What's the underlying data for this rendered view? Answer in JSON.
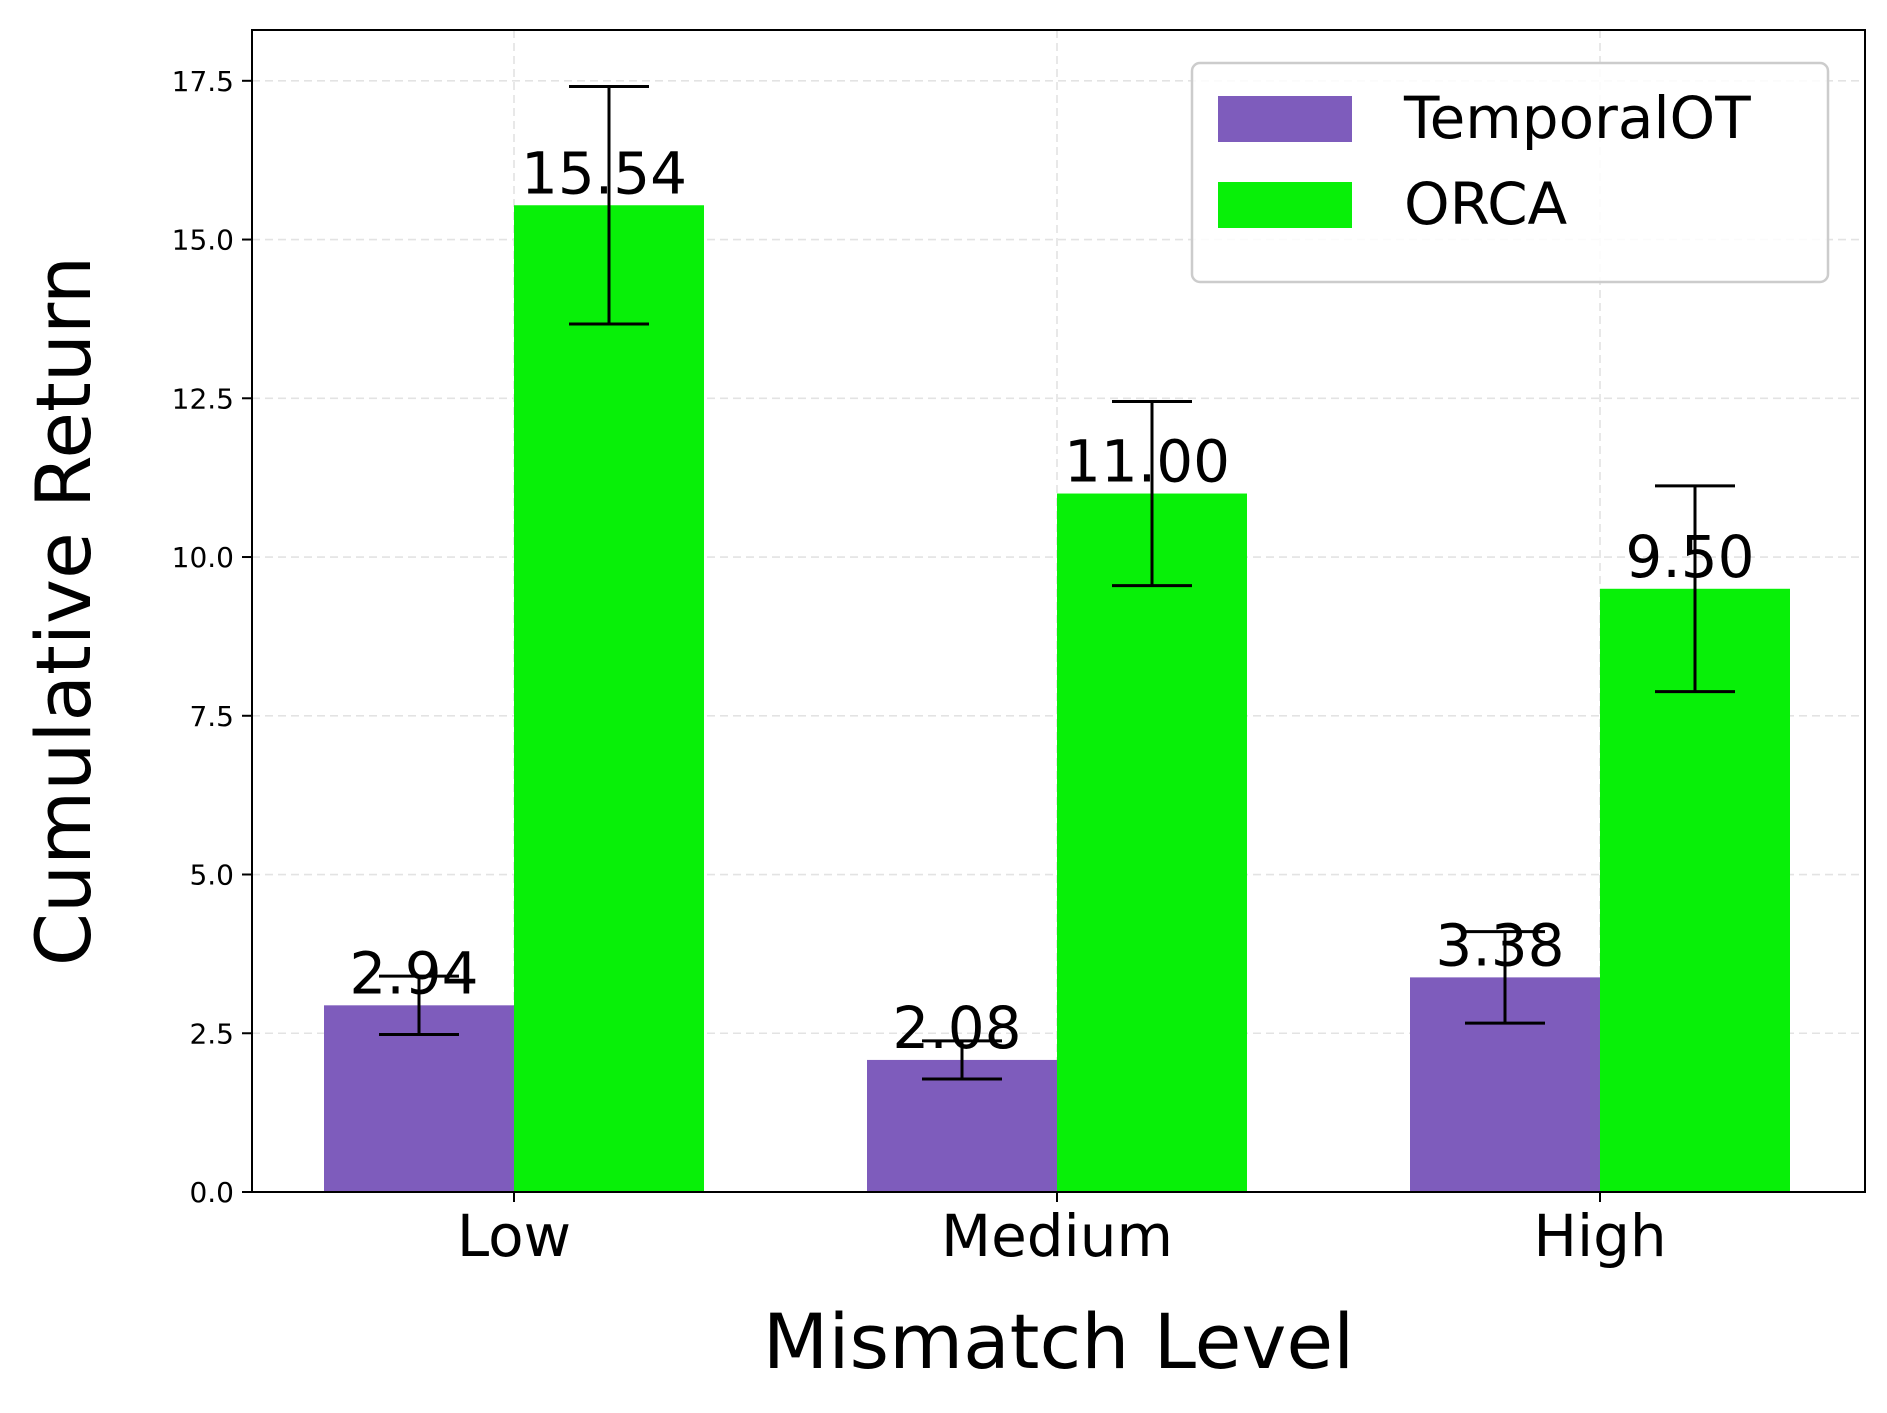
{
  "chart_data": {
    "type": "bar",
    "xlabel": "Mismatch Level",
    "ylabel": "Cumulative Return",
    "categories": [
      "Low",
      "Medium",
      "High"
    ],
    "ylim": [
      0,
      18.3
    ],
    "yticks": [
      "0.0",
      "2.5",
      "5.0",
      "7.5",
      "10.0",
      "12.5",
      "15.0",
      "17.5"
    ],
    "grid": true,
    "legend_position": "top-right",
    "series": [
      {
        "name": "TemporalOT",
        "color": "#7e5cbc",
        "values": [
          2.94,
          2.08,
          3.38
        ],
        "value_labels": [
          "2.94",
          "2.08",
          "3.38"
        ],
        "error": [
          0.46,
          0.3,
          0.72
        ]
      },
      {
        "name": "ORCA",
        "color": "#08f008",
        "values": [
          15.54,
          11.0,
          9.5
        ],
        "value_labels": [
          "15.54",
          "11.00",
          "9.50"
        ],
        "error": [
          1.87,
          1.45,
          1.62
        ]
      }
    ]
  }
}
